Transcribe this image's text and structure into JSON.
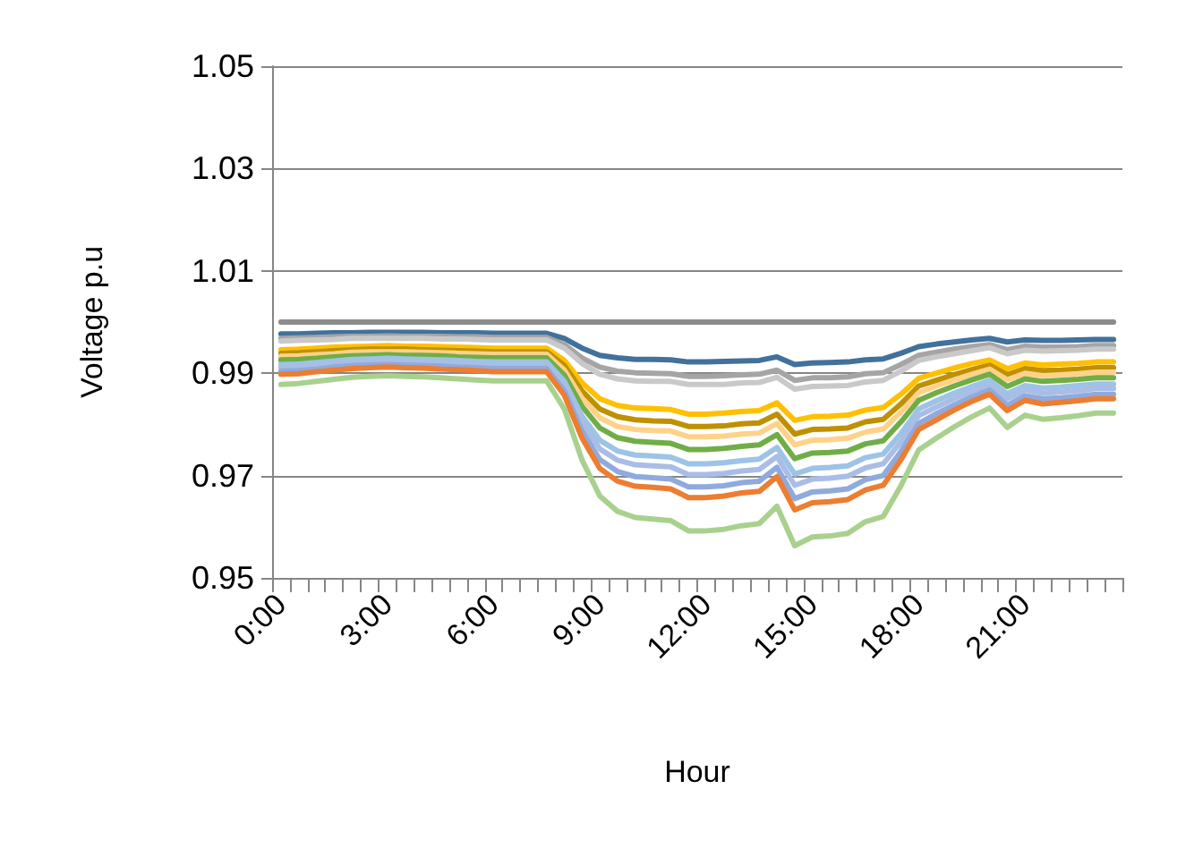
{
  "chart_data": {
    "type": "line",
    "xlabel": "Hour",
    "ylabel": "Voltage p.u",
    "categories": [
      "0:00",
      null,
      null,
      null,
      null,
      null,
      "3:00",
      null,
      null,
      null,
      null,
      null,
      "6:00",
      null,
      null,
      null,
      null,
      null,
      "9:00",
      null,
      null,
      null,
      null,
      null,
      "12:00",
      null,
      null,
      null,
      null,
      null,
      "15:00",
      null,
      null,
      null,
      null,
      null,
      "18:00",
      null,
      null,
      null,
      null,
      null,
      "21:00",
      null,
      null,
      null,
      null,
      null
    ],
    "ylim": [
      0.95,
      1.05
    ],
    "yticks": [
      0.95,
      0.97,
      0.99,
      1.01,
      1.03,
      1.05
    ],
    "grid": "y",
    "series": [
      {
        "color": "#8c8c8c",
        "values": [
          1.0,
          1.0,
          1.0,
          1.0,
          1.0,
          1.0,
          1.0,
          1.0,
          1.0,
          1.0,
          1.0,
          1.0,
          1.0,
          1.0,
          1.0,
          1.0,
          1.0,
          1.0,
          1.0,
          1.0,
          1.0,
          1.0,
          1.0,
          1.0,
          1.0,
          1.0,
          1.0,
          1.0,
          1.0,
          1.0,
          1.0,
          1.0,
          1.0,
          1.0,
          1.0,
          1.0,
          1.0,
          1.0,
          1.0,
          1.0,
          1.0,
          1.0,
          1.0,
          1.0,
          1.0,
          1.0,
          1.0,
          1.0
        ]
      },
      {
        "color": "#41719c",
        "values": [
          0.9977,
          0.9977,
          0.9978,
          0.9979,
          0.9979,
          0.998,
          0.998,
          0.998,
          0.998,
          0.9979,
          0.9979,
          0.9979,
          0.9978,
          0.9978,
          0.9978,
          0.9978,
          0.9968,
          0.9949,
          0.9935,
          0.993,
          0.9927,
          0.9927,
          0.9926,
          0.9922,
          0.9922,
          0.9923,
          0.9924,
          0.9925,
          0.9932,
          0.9917,
          0.992,
          0.9921,
          0.9922,
          0.9926,
          0.9928,
          0.9939,
          0.9952,
          0.9957,
          0.9961,
          0.9965,
          0.9968,
          0.9961,
          0.9965,
          0.9964,
          0.9964,
          0.9965,
          0.9966,
          0.9966
        ]
      },
      {
        "color": "#a5a5a5",
        "values": [
          0.9968,
          0.9969,
          0.997,
          0.9971,
          0.9972,
          0.9972,
          0.9973,
          0.9972,
          0.9972,
          0.9972,
          0.9971,
          0.9971,
          0.997,
          0.997,
          0.997,
          0.997,
          0.9956,
          0.993,
          0.9912,
          0.9904,
          0.9901,
          0.99,
          0.9899,
          0.9894,
          0.9894,
          0.9895,
          0.9897,
          0.9898,
          0.9906,
          0.9886,
          0.9891,
          0.9891,
          0.9893,
          0.9899,
          0.9901,
          0.9917,
          0.9935,
          0.9941,
          0.9947,
          0.9952,
          0.9956,
          0.9946,
          0.9953,
          0.9951,
          0.9951,
          0.9952,
          0.9954,
          0.9954
        ]
      },
      {
        "color": "#c9c9c9",
        "values": [
          0.9963,
          0.9964,
          0.9965,
          0.9966,
          0.9968,
          0.9968,
          0.9968,
          0.9968,
          0.9968,
          0.9967,
          0.9967,
          0.9966,
          0.9965,
          0.9965,
          0.9965,
          0.9965,
          0.9949,
          0.9919,
          0.9898,
          0.9889,
          0.9885,
          0.9884,
          0.9884,
          0.9878,
          0.9878,
          0.9878,
          0.9881,
          0.9882,
          0.9892,
          0.9869,
          0.9874,
          0.9875,
          0.9876,
          0.9883,
          0.9886,
          0.9904,
          0.9925,
          0.9932,
          0.9938,
          0.9944,
          0.995,
          0.9938,
          0.9945,
          0.9943,
          0.9944,
          0.9945,
          0.9947,
          0.9947
        ]
      },
      {
        "color": "#ffc000",
        "values": [
          0.9946,
          0.9947,
          0.9949,
          0.9951,
          0.9952,
          0.9953,
          0.9954,
          0.9953,
          0.9953,
          0.9952,
          0.9951,
          0.995,
          0.9949,
          0.9949,
          0.9949,
          0.9949,
          0.9925,
          0.9881,
          0.985,
          0.9837,
          0.9832,
          0.9831,
          0.9829,
          0.982,
          0.982,
          0.9822,
          0.9825,
          0.9827,
          0.9842,
          0.9808,
          0.9815,
          0.9816,
          0.9818,
          0.9828,
          0.9833,
          0.9859,
          0.989,
          0.99,
          0.991,
          0.9919,
          0.9926,
          0.9909,
          0.992,
          0.9916,
          0.9918,
          0.9919,
          0.9922,
          0.9922
        ]
      },
      {
        "color": "#bf9000",
        "values": [
          0.9939,
          0.994,
          0.9942,
          0.9944,
          0.9946,
          0.9947,
          0.9947,
          0.9947,
          0.9946,
          0.9945,
          0.9944,
          0.9943,
          0.9942,
          0.9942,
          0.9942,
          0.9942,
          0.9915,
          0.9865,
          0.983,
          0.9815,
          0.9809,
          0.9807,
          0.9806,
          0.9796,
          0.9796,
          0.9797,
          0.9801,
          0.9803,
          0.982,
          0.9781,
          0.979,
          0.9791,
          0.9793,
          0.9805,
          0.981,
          0.984,
          0.9875,
          0.9886,
          0.9897,
          0.9907,
          0.9916,
          0.9897,
          0.9909,
          0.9905,
          0.9906,
          0.9908,
          0.9911,
          0.9911
        ]
      },
      {
        "color": "#ffd28a",
        "values": [
          0.9933,
          0.9934,
          0.9936,
          0.9938,
          0.9941,
          0.9942,
          0.9942,
          0.9942,
          0.9941,
          0.994,
          0.9939,
          0.9938,
          0.9937,
          0.9937,
          0.9937,
          0.9937,
          0.9906,
          0.9851,
          0.9813,
          0.9796,
          0.979,
          0.9788,
          0.9787,
          0.9776,
          0.9776,
          0.9777,
          0.9781,
          0.9783,
          0.9802,
          0.976,
          0.9769,
          0.977,
          0.9773,
          0.9785,
          0.9791,
          0.9824,
          0.9862,
          0.9875,
          0.9887,
          0.9898,
          0.9908,
          0.9887,
          0.99,
          0.9895,
          0.9897,
          0.9899,
          0.9902,
          0.9902
        ]
      },
      {
        "color": "#70ad47",
        "values": [
          0.9926,
          0.9927,
          0.9929,
          0.9932,
          0.9934,
          0.9935,
          0.9936,
          0.9935,
          0.9935,
          0.9934,
          0.9932,
          0.9931,
          0.993,
          0.993,
          0.993,
          0.993,
          0.9896,
          0.9835,
          0.9793,
          0.9774,
          0.9767,
          0.9765,
          0.9763,
          0.9751,
          0.9751,
          0.9753,
          0.9757,
          0.976,
          0.978,
          0.9733,
          0.9744,
          0.9745,
          0.9748,
          0.9762,
          0.9768,
          0.9805,
          0.9847,
          0.9862,
          0.9875,
          0.9887,
          0.9898,
          0.9874,
          0.9889,
          0.9884,
          0.9886,
          0.9888,
          0.9891,
          0.9891
        ]
      },
      {
        "color": "#9dc3e6",
        "values": [
          0.9917,
          0.9918,
          0.9921,
          0.9924,
          0.9927,
          0.9928,
          0.9929,
          0.9928,
          0.9927,
          0.9926,
          0.9925,
          0.9923,
          0.9922,
          0.9922,
          0.9922,
          0.9922,
          0.9884,
          0.9816,
          0.9769,
          0.9748,
          0.974,
          0.9738,
          0.9736,
          0.9723,
          0.9723,
          0.9725,
          0.9729,
          0.9732,
          0.9755,
          0.9703,
          0.9714,
          0.9716,
          0.9719,
          0.9735,
          0.9742,
          0.9782,
          0.983,
          0.9846,
          0.9861,
          0.9874,
          0.9886,
          0.986,
          0.9876,
          0.9871,
          0.9873,
          0.9876,
          0.9879,
          0.9879
        ]
      },
      {
        "color": "#a9bde6",
        "values": [
          0.9911,
          0.9912,
          0.9915,
          0.9918,
          0.9921,
          0.9923,
          0.9923,
          0.9923,
          0.9922,
          0.992,
          0.9919,
          0.9918,
          0.9916,
          0.9916,
          0.9916,
          0.9916,
          0.9876,
          0.9803,
          0.9752,
          0.973,
          0.9721,
          0.9719,
          0.9717,
          0.9702,
          0.9702,
          0.9704,
          0.9709,
          0.9712,
          0.9737,
          0.9681,
          0.9693,
          0.9695,
          0.9699,
          0.9715,
          0.9723,
          0.9766,
          0.9817,
          0.9834,
          0.985,
          0.9865,
          0.9877,
          0.985,
          0.9867,
          0.9861,
          0.9863,
          0.9866,
          0.987,
          0.987
        ]
      },
      {
        "color": "#8faadc",
        "values": [
          0.9904,
          0.9905,
          0.9908,
          0.9912,
          0.9915,
          0.9916,
          0.9917,
          0.9916,
          0.9915,
          0.9914,
          0.9912,
          0.9911,
          0.9909,
          0.9909,
          0.9909,
          0.9909,
          0.9866,
          0.9787,
          0.9731,
          0.9708,
          0.9698,
          0.9696,
          0.9693,
          0.9678,
          0.9678,
          0.968,
          0.9686,
          0.9689,
          0.9716,
          0.9655,
          0.9668,
          0.967,
          0.9674,
          0.9692,
          0.97,
          0.9747,
          0.9802,
          0.9821,
          0.9838,
          0.9854,
          0.9867,
          0.9837,
          0.9856,
          0.985,
          0.9852,
          0.9855,
          0.9859,
          0.9859
        ]
      },
      {
        "color": "#ed7d31",
        "values": [
          0.9898,
          0.9899,
          0.9903,
          0.9906,
          0.9909,
          0.9911,
          0.9912,
          0.9911,
          0.991,
          0.9908,
          0.9907,
          0.9905,
          0.9903,
          0.9903,
          0.9903,
          0.9903,
          0.9857,
          0.9773,
          0.9714,
          0.9689,
          0.9679,
          0.9677,
          0.9674,
          0.9657,
          0.9657,
          0.966,
          0.9666,
          0.9669,
          0.9698,
          0.9633,
          0.9647,
          0.9649,
          0.9653,
          0.9672,
          0.9681,
          0.9731,
          0.979,
          0.9809,
          0.9828,
          0.9845,
          0.9859,
          0.9827,
          0.9847,
          0.984,
          0.9843,
          0.9846,
          0.985,
          0.985
        ]
      },
      {
        "color": "#a9d18e",
        "values": [
          0.9878,
          0.988,
          0.9884,
          0.9888,
          0.9892,
          0.9894,
          0.9895,
          0.9894,
          0.9893,
          0.9891,
          0.9889,
          0.9887,
          0.9885,
          0.9885,
          0.9885,
          0.9885,
          0.983,
          0.973,
          0.966,
          0.963,
          0.9618,
          0.9615,
          0.9612,
          0.9592,
          0.9592,
          0.9595,
          0.9602,
          0.9606,
          0.964,
          0.9563,
          0.958,
          0.9582,
          0.9587,
          0.961,
          0.962,
          0.968,
          0.975,
          0.9773,
          0.9795,
          0.9815,
          0.9832,
          0.9794,
          0.9818,
          0.981,
          0.9813,
          0.9817,
          0.9822,
          0.9822
        ]
      }
    ]
  }
}
